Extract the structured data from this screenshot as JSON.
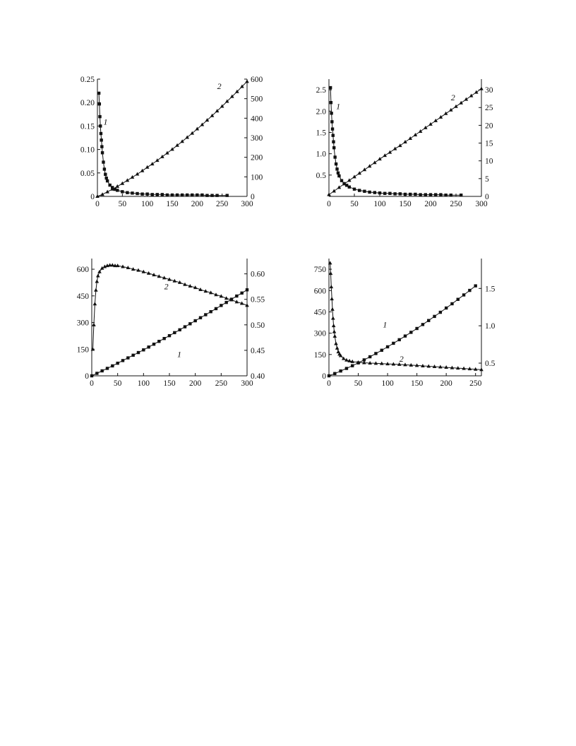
{
  "chart_data": [
    {
      "type": "line",
      "title": "",
      "xlabel": "",
      "ylabel": "",
      "y2label": "",
      "xlim": [
        0,
        300
      ],
      "ylim": [
        0,
        0.25
      ],
      "y2lim": [
        0,
        600
      ],
      "x_ticks": [
        "0",
        "50",
        "100",
        "150",
        "200",
        "250",
        "300"
      ],
      "y_ticks": [
        "0",
        "0.05",
        "0.10",
        "0.15",
        "0.20",
        "0.25"
      ],
      "y2_ticks": [
        "0",
        "100",
        "200",
        "300",
        "400",
        "500",
        "600"
      ],
      "series": [
        {
          "label": "1",
          "marker": "square",
          "axis": "left",
          "x": [
            3,
            4,
            5,
            6,
            7,
            8,
            9,
            10,
            12,
            14,
            16,
            18,
            20,
            25,
            30,
            35,
            40,
            50,
            60,
            70,
            80,
            90,
            100,
            110,
            120,
            130,
            140,
            150,
            160,
            170,
            180,
            190,
            200,
            210,
            220,
            230,
            240,
            260
          ],
          "y": [
            0.22,
            0.197,
            0.17,
            0.15,
            0.134,
            0.12,
            0.106,
            0.093,
            0.073,
            0.058,
            0.047,
            0.039,
            0.033,
            0.024,
            0.019,
            0.015,
            0.013,
            0.01,
            0.008,
            0.007,
            0.006,
            0.005,
            0.005,
            0.004,
            0.004,
            0.004,
            0.003,
            0.003,
            0.003,
            0.003,
            0.003,
            0.003,
            0.003,
            0.003,
            0.002,
            0.002,
            0.002,
            0.002
          ]
        },
        {
          "label": "2",
          "marker": "triangle",
          "axis": "right",
          "x": [
            0,
            10,
            20,
            30,
            40,
            50,
            60,
            70,
            80,
            90,
            100,
            110,
            120,
            130,
            140,
            150,
            160,
            170,
            180,
            190,
            200,
            210,
            220,
            230,
            240,
            250,
            260,
            270,
            280,
            290,
            300
          ],
          "y": [
            0,
            10,
            23,
            37,
            51,
            66,
            82,
            98,
            114,
            131,
            149,
            166,
            184,
            203,
            222,
            241,
            261,
            281,
            302,
            323,
            345,
            367,
            390,
            413,
            437,
            461,
            486,
            511,
            536,
            562,
            588
          ]
        }
      ],
      "labels": [
        "1",
        "2"
      ]
    },
    {
      "type": "line",
      "title": "",
      "xlabel": "",
      "ylabel": "",
      "y2label": "",
      "xlim": [
        0,
        300
      ],
      "ylim": [
        0,
        2.75
      ],
      "y2lim": [
        0,
        33
      ],
      "x_ticks": [
        "0",
        "50",
        "100",
        "150",
        "200",
        "250",
        "300"
      ],
      "y_ticks": [
        "0.5",
        "1.0",
        "1.5",
        "2.0",
        "2.5"
      ],
      "y2_ticks": [
        "0",
        "5",
        "10",
        "15",
        "20",
        "25",
        "30"
      ],
      "series": [
        {
          "label": "1",
          "marker": "square",
          "axis": "left",
          "x": [
            3,
            4,
            5,
            6,
            7,
            8,
            9,
            10,
            12,
            14,
            16,
            18,
            20,
            25,
            30,
            35,
            40,
            50,
            60,
            70,
            80,
            90,
            100,
            110,
            120,
            130,
            140,
            150,
            160,
            170,
            180,
            190,
            200,
            210,
            220,
            230,
            240,
            260
          ],
          "y": [
            2.55,
            2.2,
            1.95,
            1.75,
            1.58,
            1.43,
            1.28,
            1.14,
            0.92,
            0.76,
            0.64,
            0.55,
            0.48,
            0.37,
            0.3,
            0.26,
            0.22,
            0.17,
            0.14,
            0.12,
            0.1,
            0.09,
            0.08,
            0.07,
            0.07,
            0.06,
            0.06,
            0.05,
            0.05,
            0.05,
            0.04,
            0.04,
            0.04,
            0.04,
            0.04,
            0.03,
            0.03,
            0.03
          ]
        },
        {
          "label": "2",
          "marker": "triangle",
          "axis": "right",
          "x": [
            0,
            10,
            20,
            30,
            40,
            50,
            60,
            70,
            80,
            90,
            100,
            110,
            120,
            130,
            140,
            150,
            160,
            170,
            180,
            190,
            200,
            210,
            220,
            230,
            240,
            250,
            260,
            270,
            280,
            290,
            300
          ],
          "y": [
            0.5,
            1.5,
            2.5,
            3.5,
            4.5,
            5.5,
            6.5,
            7.5,
            8.5,
            9.5,
            10.5,
            11.5,
            12.4,
            13.4,
            14.3,
            15.3,
            16.3,
            17.3,
            18.3,
            19.3,
            20.3,
            21.3,
            22.3,
            23.3,
            24.3,
            25.3,
            26.3,
            27.3,
            28.3,
            29.3,
            30.3
          ]
        }
      ],
      "labels": [
        "1",
        "2"
      ]
    },
    {
      "type": "line",
      "title": "",
      "xlabel": "",
      "ylabel": "",
      "y2label": "",
      "xlim": [
        0,
        300
      ],
      "ylim": [
        0,
        660
      ],
      "y2lim": [
        0.4,
        0.63
      ],
      "x_ticks": [
        "0",
        "50",
        "100",
        "150",
        "200",
        "250",
        "300"
      ],
      "y_ticks": [
        "0",
        "150",
        "300",
        "450",
        "600"
      ],
      "y2_ticks": [
        "0.40",
        "0.45",
        "0.50",
        "0.55",
        "0.60"
      ],
      "series": [
        {
          "label": "1",
          "marker": "square",
          "axis": "left",
          "x": [
            0,
            10,
            20,
            30,
            40,
            50,
            60,
            70,
            80,
            90,
            100,
            110,
            120,
            130,
            140,
            150,
            160,
            170,
            180,
            190,
            200,
            210,
            220,
            230,
            240,
            250,
            260,
            270,
            280,
            290,
            300
          ],
          "y": [
            0,
            14,
            28,
            42,
            56,
            71,
            86,
            101,
            116,
            131,
            146,
            162,
            178,
            194,
            210,
            226,
            243,
            259,
            276,
            293,
            310,
            327,
            344,
            361,
            378,
            396,
            413,
            431,
            449,
            466,
            484
          ]
        },
        {
          "label": "2",
          "marker": "triangle",
          "axis": "right",
          "x": [
            2,
            4,
            6,
            8,
            10,
            12,
            15,
            20,
            25,
            30,
            35,
            40,
            45,
            50,
            60,
            70,
            80,
            90,
            100,
            110,
            120,
            130,
            140,
            150,
            160,
            170,
            180,
            190,
            200,
            210,
            220,
            230,
            240,
            250,
            260,
            270,
            280,
            290,
            300
          ],
          "y": [
            0.452,
            0.5,
            0.541,
            0.568,
            0.585,
            0.596,
            0.604,
            0.611,
            0.614,
            0.616,
            0.617,
            0.617,
            0.616,
            0.616,
            0.614,
            0.612,
            0.609,
            0.607,
            0.604,
            0.601,
            0.598,
            0.595,
            0.592,
            0.589,
            0.586,
            0.583,
            0.579,
            0.576,
            0.573,
            0.569,
            0.566,
            0.563,
            0.559,
            0.556,
            0.552,
            0.549,
            0.545,
            0.542,
            0.538
          ]
        }
      ],
      "labels": [
        "1",
        "2"
      ]
    },
    {
      "type": "line",
      "title": "",
      "xlabel": "",
      "ylabel": "",
      "y2label": "",
      "xlim": [
        0,
        260
      ],
      "ylim": [
        0,
        825
      ],
      "y2lim": [
        0.33,
        1.9
      ],
      "x_ticks": [
        "0",
        "50",
        "100",
        "150",
        "200",
        "250"
      ],
      "y_ticks": [
        "0",
        "150",
        "300",
        "450",
        "600",
        "750"
      ],
      "y2_ticks": [
        "0.5",
        "1.0",
        "1.5"
      ],
      "series": [
        {
          "label": "1",
          "marker": "square",
          "axis": "left",
          "x": [
            0,
            10,
            20,
            30,
            40,
            50,
            60,
            70,
            80,
            90,
            100,
            110,
            120,
            130,
            140,
            150,
            160,
            170,
            180,
            190,
            200,
            210,
            220,
            230,
            240,
            250
          ],
          "y": [
            0,
            16,
            34,
            52,
            71,
            91,
            112,
            134,
            157,
            180,
            204,
            229,
            254,
            280,
            306,
            333,
            361,
            389,
            418,
            447,
            477,
            507,
            538,
            569,
            601,
            633
          ]
        },
        {
          "label": "2",
          "marker": "triangle",
          "axis": "right",
          "x": [
            2,
            3,
            4,
            5,
            6,
            7,
            8,
            9,
            10,
            12,
            14,
            16,
            18,
            20,
            25,
            30,
            35,
            40,
            50,
            60,
            70,
            80,
            90,
            100,
            110,
            120,
            130,
            140,
            150,
            160,
            170,
            180,
            190,
            200,
            210,
            220,
            230,
            240,
            250,
            260
          ],
          "y": [
            1.84,
            1.7,
            1.52,
            1.36,
            1.22,
            1.1,
            1.0,
            0.92,
            0.86,
            0.76,
            0.7,
            0.65,
            0.62,
            0.6,
            0.56,
            0.54,
            0.53,
            0.52,
            0.51,
            0.505,
            0.5,
            0.497,
            0.494,
            0.49,
            0.486,
            0.482,
            0.478,
            0.473,
            0.468,
            0.463,
            0.458,
            0.453,
            0.448,
            0.443,
            0.438,
            0.433,
            0.428,
            0.423,
            0.418,
            0.413
          ]
        }
      ],
      "labels": [
        "1",
        "2"
      ]
    }
  ]
}
